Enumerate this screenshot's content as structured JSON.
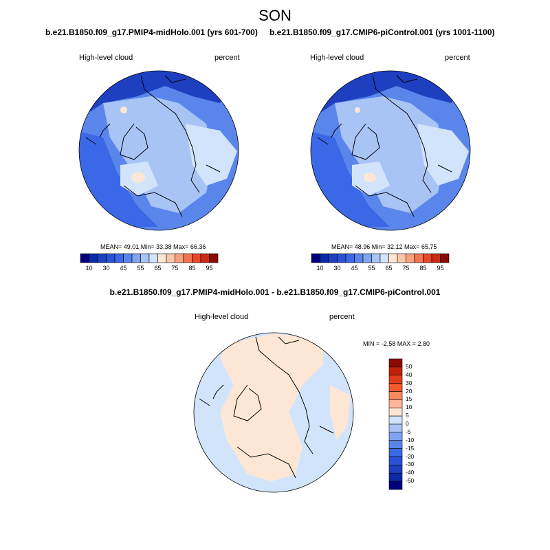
{
  "title": "SON",
  "panels": [
    {
      "case_title": "b.e21.B1850.f09_g17.PMIP4-midHolo.001 (yrs 601-700)",
      "variable": "High-level cloud",
      "units": "percent",
      "stats": "MEAN=  49.01   Min=  33.38   Max=  66.36"
    },
    {
      "case_title": "b.e21.B1850.f09_g17.CMIP6-piControl.001 (yrs 1001-1100)",
      "variable": "High-level cloud",
      "units": "percent",
      "stats": "MEAN=  48.96   Min=  32.12   Max=  65.75"
    }
  ],
  "diff_panel": {
    "case_title": "b.e21.B1850.f09_g17.PMIP4-midHolo.001 - b.e21.B1850.f09_g17.CMIP6-piControl.001",
    "variable": "High-level cloud",
    "units": "percent",
    "stats": "MIN =  -2.58 MAX =   2.80"
  },
  "colorbar_main": {
    "colors": [
      "#00007f",
      "#0a2aa8",
      "#1e3fc0",
      "#2a52d6",
      "#3a68e6",
      "#5a86ec",
      "#80a4f0",
      "#a8c4f5",
      "#d2e4fb",
      "#fde7d4",
      "#fcc7a8",
      "#f9a07c",
      "#f37450",
      "#e84828",
      "#cc2a14",
      "#8c0a00"
    ],
    "tick_labels": [
      "10",
      "30",
      "45",
      "55",
      "65",
      "75",
      "85",
      "95"
    ]
  },
  "colorbar_diff": {
    "colors": [
      "#8c0a00",
      "#c0200c",
      "#e03c1c",
      "#f55a2c",
      "#fa8a5c",
      "#fcb698",
      "#fde7d4",
      "#d2e4fb",
      "#a8c4f5",
      "#80a4f0",
      "#5a86ec",
      "#3a68e6",
      "#2a52d6",
      "#1e3fc0",
      "#0a2aa8",
      "#00007f"
    ],
    "tick_labels": [
      "50",
      "40",
      "30",
      "20",
      "15",
      "10",
      "5",
      "0",
      "-5",
      "-10",
      "-15",
      "-20",
      "-30",
      "-40",
      "-50"
    ]
  },
  "map_colors": {
    "deep": "#3a68e6",
    "mid": "#5a86ec",
    "light": "#a8c4f5",
    "pale": "#d2e4fb",
    "peach": "#fde7d4",
    "dark": "#1e3fc0"
  }
}
